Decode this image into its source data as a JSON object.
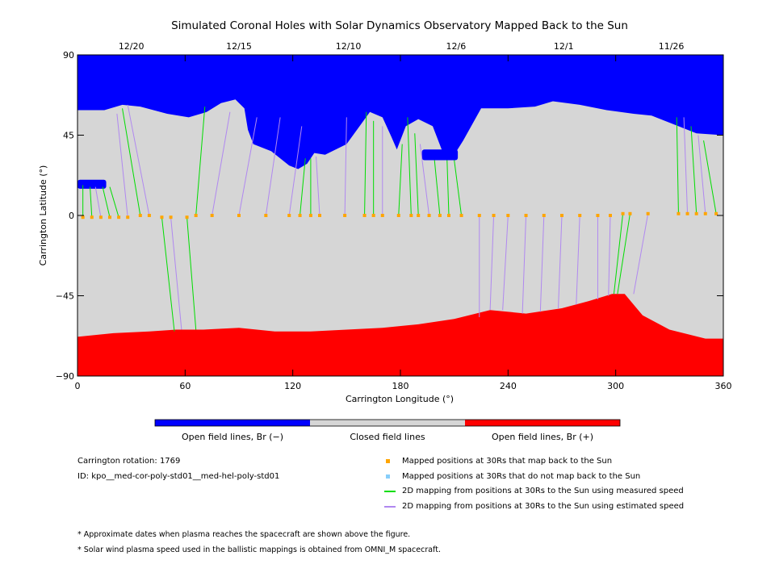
{
  "chart_data": {
    "type": "heatmap",
    "title": "Simulated Coronal Holes with Solar Dynamics Observatory Mapped Back to the Sun",
    "xlabel": "Carrington Longitude (°)",
    "ylabel": "Carrington Latitude (°)",
    "xlim": [
      0,
      360
    ],
    "ylim": [
      -90,
      90
    ],
    "x_ticks": [
      "0",
      "60",
      "120",
      "180",
      "240",
      "300",
      "360"
    ],
    "y_ticks": [
      "90",
      "45",
      "0",
      "−45",
      "−90"
    ],
    "top_ticks": [
      {
        "label": "12/20",
        "lon": 30
      },
      {
        "label": "12/15",
        "lon": 90
      },
      {
        "label": "12/10",
        "lon": 151
      },
      {
        "label": "12/6",
        "lon": 211
      },
      {
        "label": "12/1",
        "lon": 271
      },
      {
        "label": "11/26",
        "lon": 331
      }
    ],
    "regions": {
      "north_hole_boundary": [
        [
          0,
          59
        ],
        [
          15,
          59
        ],
        [
          25,
          62
        ],
        [
          35,
          61
        ],
        [
          50,
          57
        ],
        [
          62,
          55
        ],
        [
          72,
          58
        ],
        [
          80,
          63
        ],
        [
          88,
          65
        ],
        [
          93,
          60
        ],
        [
          95,
          48
        ],
        [
          98,
          40
        ],
        [
          108,
          36
        ],
        [
          118,
          28
        ],
        [
          123,
          26
        ],
        [
          128,
          29
        ],
        [
          132,
          35
        ],
        [
          138,
          34
        ],
        [
          150,
          40
        ],
        [
          163,
          58
        ],
        [
          170,
          55
        ],
        [
          175,
          44
        ],
        [
          178,
          37
        ],
        [
          183,
          50
        ],
        [
          190,
          54
        ],
        [
          198,
          50
        ],
        [
          203,
          37
        ],
        [
          210,
          34
        ],
        [
          215,
          42
        ],
        [
          225,
          60
        ],
        [
          240,
          60
        ],
        [
          255,
          61
        ],
        [
          265,
          64
        ],
        [
          280,
          62
        ],
        [
          295,
          59
        ],
        [
          310,
          57
        ],
        [
          320,
          56
        ],
        [
          335,
          50
        ],
        [
          345,
          46
        ],
        [
          360,
          45
        ]
      ],
      "north_hole_islands": [
        {
          "lon": [
            0,
            16
          ],
          "lat": [
            15,
            20
          ]
        },
        {
          "lon": [
            192,
            212
          ],
          "lat": [
            31,
            37
          ]
        }
      ],
      "south_hole_boundary": [
        [
          0,
          -68
        ],
        [
          20,
          -66
        ],
        [
          40,
          -65
        ],
        [
          55,
          -64
        ],
        [
          70,
          -64
        ],
        [
          90,
          -63
        ],
        [
          110,
          -65
        ],
        [
          130,
          -65
        ],
        [
          150,
          -64
        ],
        [
          170,
          -63
        ],
        [
          190,
          -61
        ],
        [
          210,
          -58
        ],
        [
          230,
          -53
        ],
        [
          250,
          -55
        ],
        [
          270,
          -52
        ],
        [
          285,
          -48
        ],
        [
          298,
          -44
        ],
        [
          305,
          -44
        ],
        [
          315,
          -56
        ],
        [
          330,
          -64
        ],
        [
          350,
          -69
        ],
        [
          360,
          -69
        ]
      ]
    },
    "mapped_points": {
      "maps_back": [
        {
          "lon": 3,
          "lat": -1,
          "src_lon": 3,
          "src_lat": 17,
          "speed": "measured"
        },
        {
          "lon": 8,
          "lat": -1,
          "src_lon": 7,
          "src_lat": 16,
          "speed": "measured"
        },
        {
          "lon": 13,
          "lat": -1,
          "src_lon": 10,
          "src_lat": 16,
          "speed": "estimated"
        },
        {
          "lon": 18,
          "lat": -1,
          "src_lon": 14,
          "src_lat": 16,
          "speed": "measured"
        },
        {
          "lon": 23,
          "lat": -1,
          "src_lon": 18,
          "src_lat": 16,
          "speed": "measured"
        },
        {
          "lon": 28,
          "lat": -1,
          "src_lon": 22,
          "src_lat": 57,
          "speed": "estimated"
        },
        {
          "lon": 35,
          "lat": 0,
          "src_lon": 25,
          "src_lat": 60,
          "speed": "measured"
        },
        {
          "lon": 40,
          "lat": 0,
          "src_lon": 28,
          "src_lat": 62,
          "speed": "estimated"
        },
        {
          "lon": 47,
          "lat": -1,
          "src_lon": 54,
          "src_lat": -65,
          "speed": "measured"
        },
        {
          "lon": 52,
          "lat": -1,
          "src_lon": 58,
          "src_lat": -64,
          "speed": "estimated"
        },
        {
          "lon": 61,
          "lat": -1,
          "src_lon": 66,
          "src_lat": -64,
          "speed": "measured"
        },
        {
          "lon": 66,
          "lat": 0,
          "src_lon": 71,
          "src_lat": 61,
          "speed": "measured"
        },
        {
          "lon": 75,
          "lat": 0,
          "src_lon": 85,
          "src_lat": 58,
          "speed": "estimated"
        },
        {
          "lon": 90,
          "lat": 0,
          "src_lon": 100,
          "src_lat": 55,
          "speed": "estimated"
        },
        {
          "lon": 105,
          "lat": 0,
          "src_lon": 113,
          "src_lat": 55,
          "speed": "estimated"
        },
        {
          "lon": 118,
          "lat": 0,
          "src_lon": 125,
          "src_lat": 50,
          "speed": "estimated"
        },
        {
          "lon": 124,
          "lat": 0,
          "src_lon": 127,
          "src_lat": 32,
          "speed": "measured"
        },
        {
          "lon": 130,
          "lat": 0,
          "src_lon": 130,
          "src_lat": 32,
          "speed": "measured"
        },
        {
          "lon": 135,
          "lat": 0,
          "src_lon": 133,
          "src_lat": 33,
          "speed": "estimated"
        },
        {
          "lon": 149,
          "lat": 0,
          "src_lon": 150,
          "src_lat": 55,
          "speed": "estimated"
        },
        {
          "lon": 160,
          "lat": 0,
          "src_lon": 161,
          "src_lat": 58,
          "speed": "measured"
        },
        {
          "lon": 165,
          "lat": 0,
          "src_lon": 165,
          "src_lat": 53,
          "speed": "measured"
        },
        {
          "lon": 170,
          "lat": 0,
          "src_lon": 170,
          "src_lat": 50,
          "speed": "estimated"
        },
        {
          "lon": 179,
          "lat": 0,
          "src_lon": 181,
          "src_lat": 40,
          "speed": "measured"
        },
        {
          "lon": 186,
          "lat": 0,
          "src_lon": 184,
          "src_lat": 55,
          "speed": "measured"
        },
        {
          "lon": 190,
          "lat": 0,
          "src_lon": 188,
          "src_lat": 46,
          "speed": "measured"
        },
        {
          "lon": 196,
          "lat": 0,
          "src_lon": 191,
          "src_lat": 40,
          "speed": "estimated"
        },
        {
          "lon": 202,
          "lat": 0,
          "src_lon": 199,
          "src_lat": 31,
          "speed": "measured"
        },
        {
          "lon": 207,
          "lat": 0,
          "src_lon": 206,
          "src_lat": 31,
          "speed": "measured"
        },
        {
          "lon": 214,
          "lat": 0,
          "src_lon": 210,
          "src_lat": 31,
          "speed": "measured"
        },
        {
          "lon": 224,
          "lat": 0,
          "src_lon": 224,
          "src_lat": -57,
          "speed": "estimated"
        },
        {
          "lon": 232,
          "lat": 0,
          "src_lon": 230,
          "src_lat": -53,
          "speed": "estimated"
        },
        {
          "lon": 240,
          "lat": 0,
          "src_lon": 237,
          "src_lat": -53,
          "speed": "estimated"
        },
        {
          "lon": 250,
          "lat": 0,
          "src_lon": 248,
          "src_lat": -55,
          "speed": "estimated"
        },
        {
          "lon": 260,
          "lat": 0,
          "src_lon": 258,
          "src_lat": -54,
          "speed": "estimated"
        },
        {
          "lon": 270,
          "lat": 0,
          "src_lon": 268,
          "src_lat": -52,
          "speed": "estimated"
        },
        {
          "lon": 280,
          "lat": 0,
          "src_lon": 278,
          "src_lat": -50,
          "speed": "estimated"
        },
        {
          "lon": 290,
          "lat": 0,
          "src_lon": 290,
          "src_lat": -47,
          "speed": "estimated"
        },
        {
          "lon": 297,
          "lat": 0,
          "src_lon": 296,
          "src_lat": -45,
          "speed": "estimated"
        },
        {
          "lon": 304,
          "lat": 1,
          "src_lon": 299,
          "src_lat": -44,
          "speed": "measured"
        },
        {
          "lon": 308,
          "lat": 1,
          "src_lon": 301,
          "src_lat": -44,
          "speed": "measured"
        },
        {
          "lon": 318,
          "lat": 1,
          "src_lon": 310,
          "src_lat": -44,
          "speed": "estimated"
        },
        {
          "lon": 335,
          "lat": 1,
          "src_lon": 334,
          "src_lat": 55,
          "speed": "measured"
        },
        {
          "lon": 340,
          "lat": 1,
          "src_lon": 338,
          "src_lat": 55,
          "speed": "estimated"
        },
        {
          "lon": 345,
          "lat": 1,
          "src_lon": 342,
          "src_lat": 50,
          "speed": "measured"
        },
        {
          "lon": 350,
          "lat": 1,
          "src_lon": 346,
          "src_lat": 45,
          "speed": "estimated"
        },
        {
          "lon": 356,
          "lat": 1,
          "src_lon": 349,
          "src_lat": 42,
          "speed": "measured"
        }
      ],
      "no_map": []
    },
    "colorbar": [
      {
        "label": "Open field lines, Br (−)",
        "color": "#0000ff"
      },
      {
        "label": "Closed field lines",
        "color": "#d6d6d6"
      },
      {
        "label": "Open field lines, Br (+)",
        "color": "#ff0000"
      }
    ],
    "legend": [
      {
        "label": "Mapped positions at 30Rs that map back to the Sun",
        "marker": "square",
        "color": "#ffa500"
      },
      {
        "label": "Mapped positions at 30Rs that do not map back to the Sun",
        "marker": "square",
        "color": "#87cefa"
      },
      {
        "label": "2D mapping from positions at 30Rs to the Sun using measured speed",
        "marker": "line",
        "color": "#00dd00"
      },
      {
        "label": "2D mapping from positions at 30Rs to the Sun using estimated speed",
        "marker": "line",
        "color": "#b088f0"
      }
    ],
    "grid": false
  },
  "info": {
    "rotation": "Carrington rotation: 1769",
    "id": "ID: kpo__med-cor-poly-std01__med-hel-poly-std01"
  },
  "footnotes": [
    "* Approximate dates when plasma reaches the spacecraft are shown above the figure.",
    "* Solar wind plasma speed used in the ballistic mappings is obtained from OMNI_M spacecraft."
  ],
  "colors": {
    "open_neg": "#0000ff",
    "closed": "#d6d6d6",
    "open_pos": "#ff0000",
    "measured": "#00dd00",
    "estimated": "#b088f0",
    "maps_back": "#ffa500",
    "no_map": "#87cefa"
  }
}
